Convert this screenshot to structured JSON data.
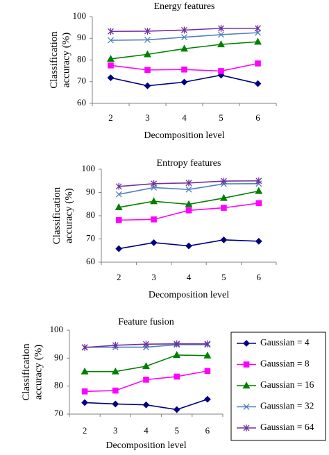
{
  "chart_data": [
    {
      "type": "line",
      "title": "Energy features",
      "xlabel": "Decomposition level",
      "ylabel": "Classification accuracy (%)",
      "x": [
        2,
        3,
        4,
        5,
        6
      ],
      "ylim": [
        60,
        100
      ],
      "yticks": [
        60,
        70,
        80,
        90,
        100
      ],
      "grid": false,
      "legend": "none",
      "series": [
        {
          "name": "Gaussian = 4",
          "color": "#000080",
          "marker": "diamond",
          "values": [
            71.8,
            68.1,
            69.8,
            73.0,
            69.1
          ]
        },
        {
          "name": "Gaussian = 8",
          "color": "#ff00ff",
          "marker": "square",
          "values": [
            77.5,
            75.4,
            75.6,
            74.9,
            78.4
          ]
        },
        {
          "name": "Gaussian = 16",
          "color": "#008000",
          "marker": "triangle",
          "values": [
            80.5,
            82.6,
            85.2,
            87.2,
            88.4
          ]
        },
        {
          "name": "Gaussian = 32",
          "color": "#4f81bd",
          "marker": "x",
          "values": [
            89.1,
            89.3,
            90.5,
            91.7,
            92.6
          ]
        },
        {
          "name": "Gaussian = 64",
          "color": "#7030a0",
          "marker": "star",
          "values": [
            93.2,
            93.3,
            93.8,
            94.6,
            94.6
          ]
        }
      ]
    },
    {
      "type": "line",
      "title": "Entropy features",
      "xlabel": "Decomposition level",
      "ylabel": "Classification accuracy (%)",
      "x": [
        2,
        3,
        4,
        5,
        6
      ],
      "ylim": [
        60,
        100
      ],
      "yticks": [
        60,
        70,
        80,
        90,
        100
      ],
      "grid": false,
      "legend": "none",
      "series": [
        {
          "name": "Gaussian = 4",
          "color": "#000080",
          "marker": "diamond",
          "values": [
            65.8,
            68.4,
            67.0,
            69.6,
            69.0
          ]
        },
        {
          "name": "Gaussian = 8",
          "color": "#ff00ff",
          "marker": "square",
          "values": [
            78.1,
            78.4,
            82.3,
            83.4,
            85.4
          ]
        },
        {
          "name": "Gaussian = 16",
          "color": "#008000",
          "marker": "triangle",
          "values": [
            83.6,
            86.2,
            84.9,
            87.6,
            90.6
          ]
        },
        {
          "name": "Gaussian = 32",
          "color": "#4f81bd",
          "marker": "x",
          "values": [
            89.2,
            92.1,
            91.3,
            93.7,
            93.8
          ]
        },
        {
          "name": "Gaussian = 64",
          "color": "#7030a0",
          "marker": "star",
          "values": [
            92.6,
            93.8,
            94.1,
            94.9,
            95.0
          ]
        }
      ]
    },
    {
      "type": "line",
      "title": "Feature fusion",
      "xlabel": "Decomposition level",
      "ylabel": "Classification accuracy (%)",
      "x": [
        2,
        3,
        4,
        5,
        6
      ],
      "ylim": [
        70,
        100
      ],
      "yticks": [
        70,
        80,
        90,
        100
      ],
      "grid": false,
      "legend": "right",
      "series": [
        {
          "name": "Gaussian = 4",
          "color": "#000080",
          "marker": "diamond",
          "values": [
            74.1,
            73.6,
            73.3,
            71.6,
            75.3
          ]
        },
        {
          "name": "Gaussian = 8",
          "color": "#ff00ff",
          "marker": "square",
          "values": [
            78.1,
            78.4,
            82.3,
            83.4,
            85.4
          ]
        },
        {
          "name": "Gaussian = 16",
          "color": "#008000",
          "marker": "triangle",
          "values": [
            85.2,
            85.2,
            87.1,
            91.1,
            90.9
          ]
        },
        {
          "name": "Gaussian = 32",
          "color": "#4f81bd",
          "marker": "x",
          "values": [
            93.9,
            93.9,
            93.9,
            94.8,
            94.8
          ]
        },
        {
          "name": "Gaussian = 64",
          "color": "#7030a0",
          "marker": "star",
          "values": [
            93.8,
            94.6,
            95.0,
            95.1,
            95.1
          ]
        }
      ]
    }
  ]
}
